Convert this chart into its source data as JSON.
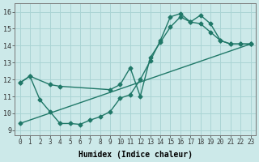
{
  "xlabel": "Humidex (Indice chaleur)",
  "ylabel": "",
  "background_color": "#cce9e9",
  "grid_color": "#aad4d4",
  "line_color": "#207868",
  "xlim": [
    -0.5,
    23.5
  ],
  "ylim": [
    8.7,
    16.5
  ],
  "xticks": [
    0,
    1,
    2,
    3,
    4,
    5,
    6,
    7,
    8,
    9,
    10,
    11,
    12,
    13,
    14,
    15,
    16,
    17,
    18,
    19,
    20,
    21,
    22,
    23
  ],
  "yticks": [
    9,
    10,
    11,
    12,
    13,
    14,
    15,
    16
  ],
  "line1_x": [
    0,
    1,
    2,
    3,
    4,
    5,
    6,
    7,
    8,
    9,
    10,
    11,
    12,
    13,
    14,
    15,
    16,
    17,
    18,
    19,
    20,
    21,
    22,
    23
  ],
  "line1_y": [
    11.8,
    12.2,
    10.8,
    10.1,
    9.4,
    9.4,
    9.35,
    9.6,
    9.8,
    10.1,
    10.9,
    11.1,
    12.0,
    13.1,
    14.3,
    15.7,
    15.9,
    15.4,
    15.8,
    15.3,
    14.3,
    14.1,
    14.1,
    14.1
  ],
  "line2_x": [
    0,
    1,
    3,
    4,
    9,
    10,
    11,
    12,
    13,
    14,
    15,
    16,
    17,
    18,
    19,
    20,
    21,
    22,
    23
  ],
  "line2_y": [
    11.8,
    12.2,
    11.7,
    11.6,
    11.4,
    11.7,
    12.7,
    11.0,
    13.3,
    14.2,
    15.1,
    15.7,
    15.4,
    15.3,
    14.8,
    14.3,
    14.1,
    14.1,
    14.1
  ],
  "line3_x": [
    0,
    23
  ],
  "line3_y": [
    9.4,
    14.1
  ],
  "marker": "D",
  "markersize": 2.5,
  "linewidth": 1.0
}
